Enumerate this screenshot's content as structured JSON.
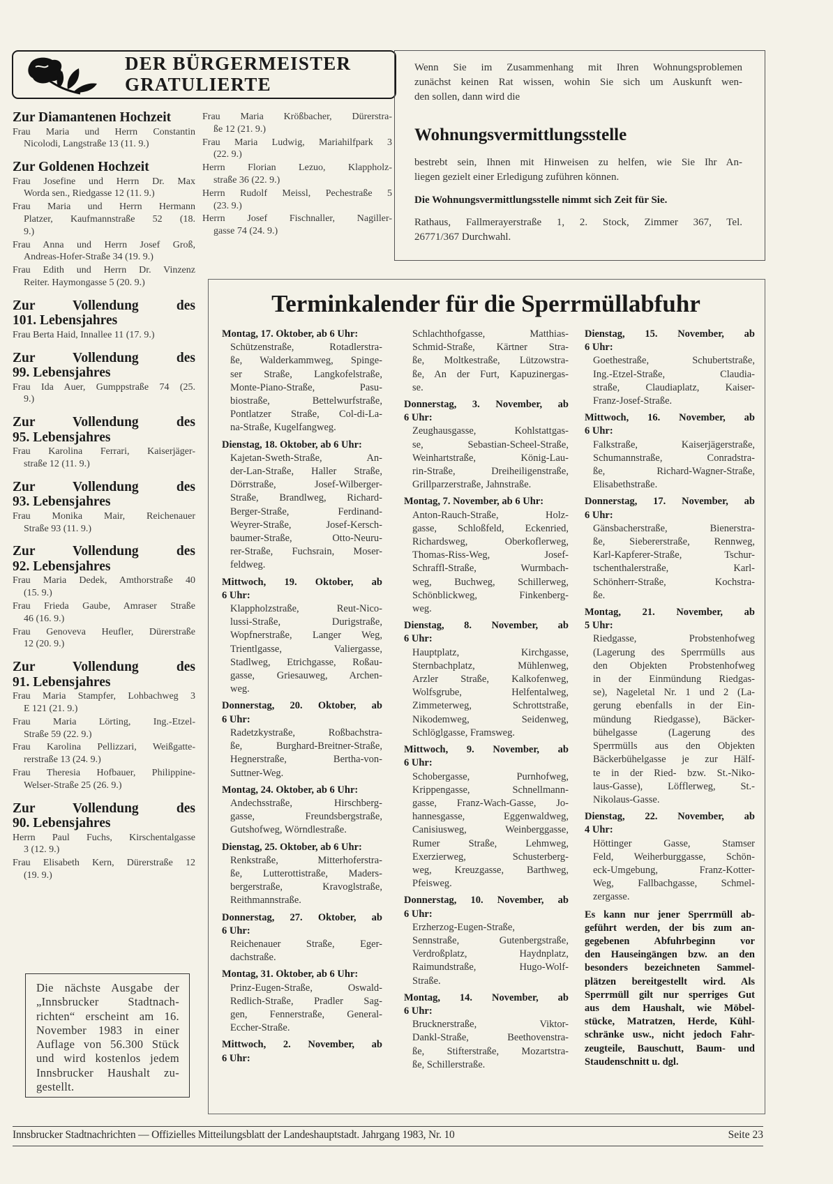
{
  "header": {
    "title_line1": "DER BÜRGERMEISTER",
    "title_line2": "GRATULIERTE",
    "logo_icon": "rose-icon"
  },
  "gratulations": {
    "sections": [
      {
        "heading": [
          "Zur Diamantenen Hochzeit"
        ],
        "entries": [
          [
            "Frau Maria und Herrn Constantin",
            "Nicolodi, Langstraße 13 (11. 9.)"
          ]
        ]
      },
      {
        "heading": [
          "Zur Goldenen Hochzeit"
        ],
        "entries": [
          [
            "Frau Josefine und Herrn Dr. Max",
            "Worda sen., Riedgasse 12 (11. 9.)"
          ],
          [
            "Frau Maria und Herrn Hermann",
            "Platzer, Kaufmannstraße 52 (18.",
            "9.)"
          ],
          [
            "Frau Anna und Herrn Josef Groß,",
            "Andreas-Hofer-Straße 34 (19. 9.)"
          ],
          [
            "Frau Edith und Herrn Dr. Vinzenz",
            "Reiter. Haymongasse 5 (20. 9.)"
          ]
        ]
      },
      {
        "heading": [
          "Zur Vollendung des",
          "101. Lebensjahres"
        ],
        "entries": [
          [
            "Frau Berta Haid, Innallee 11 (17. 9.)"
          ]
        ]
      },
      {
        "heading": [
          "Zur Vollendung des",
          "99. Lebensjahres"
        ],
        "entries": [
          [
            "Frau Ida Auer, Gumppstraße 74 (25.",
            "9.)"
          ]
        ]
      },
      {
        "heading": [
          "Zur Vollendung des",
          "95. Lebensjahres"
        ],
        "entries": [
          [
            "Frau Karolina Ferrari, Kaiserjäger-",
            "straße 12 (11. 9.)"
          ]
        ]
      },
      {
        "heading": [
          "Zur Vollendung des",
          "93. Lebensjahres"
        ],
        "entries": [
          [
            "Frau Monika Mair, Reichenauer",
            "Straße 93 (11. 9.)"
          ]
        ]
      },
      {
        "heading": [
          "Zur Vollendung des",
          "92. Lebensjahres"
        ],
        "entries": [
          [
            "Frau Maria Dedek, Amthorstraße 40",
            "(15. 9.)"
          ],
          [
            "Frau Frieda Gaube, Amraser Straße",
            "46 (16. 9.)"
          ],
          [
            "Frau Genoveva Heufler, Dürerstraße",
            "12 (20. 9.)"
          ]
        ]
      },
      {
        "heading": [
          "Zur Vollendung des",
          "91. Lebensjahres"
        ],
        "entries": [
          [
            "Frau Maria Stampfer, Lohbachweg 3",
            "E 121 (21. 9.)"
          ],
          [
            "Frau Maria Lörting, Ing.-Etzel-",
            "Straße 59 (22. 9.)"
          ],
          [
            "Frau Karolina Pellizzari, Weißgatte-",
            "rerstraße 13 (24. 9.)"
          ],
          [
            "Frau Theresia Hofbauer, Philippine-",
            "Welser-Straße 25 (26. 9.)"
          ]
        ]
      },
      {
        "heading": [
          "Zur Vollendung des",
          "90. Lebensjahres"
        ],
        "entries": [
          [
            "Herrn Paul Fuchs, Kirschentalgasse",
            "3 (12. 9.)"
          ],
          [
            "Frau Elisabeth Kern, Dürerstraße 12",
            "(19. 9.)"
          ]
        ]
      }
    ],
    "continued_entries": [
      [
        "Frau Maria Krößbacher, Dürerstra-",
        "ße 12 (21. 9.)"
      ],
      [
        "Frau Maria Ludwig, Mariahilfpark 3",
        "(22. 9.)"
      ],
      [
        "Herrn Florian Lezuo, Klappholz-",
        "straße 36 (22. 9.)"
      ],
      [
        "Herrn Rudolf Meissl, Pechestraße 5",
        "(23. 9.)"
      ],
      [
        "Herrn Josef Fischnaller, Nagiller-",
        "gasse 74 (24. 9.)"
      ]
    ]
  },
  "housing": {
    "intro": [
      "Wenn Sie im Zusammenhang mit Ihren Wohnungsproblemen",
      "zunächst keinen Rat wissen, wohin Sie sich um Auskunft wen-",
      "den sollen, dann wird die"
    ],
    "title": "Wohnungsvermittlungsstelle",
    "body": [
      "bestrebt sein, Ihnen mit Hinweisen zu helfen, wie Sie Ihr An-",
      "liegen gezielt einer Erledigung zuführen können."
    ],
    "bold_line": "Die Wohnungsvermittlungsstelle nimmt sich Zeit für Sie.",
    "address": [
      "Rathaus, Fallmerayerstraße 1, 2. Stock, Zimmer 367, Tel.",
      "26771/367 Durchwahl."
    ]
  },
  "calendar": {
    "title": "Terminkalender für die Sperrmüllabfuhr",
    "columns": [
      [
        {
          "heading": [
            "Montag, 17. Oktober, ab 6 Uhr:"
          ],
          "streets": [
            "Schützenstraße, Rotadlerstra-",
            "ße, Walderkammweg, Spinge-",
            "ser Straße, Langkofelstraße,",
            "Monte-Piano-Straße, Pasu-",
            "biostraße, Bettelwurfstraße,",
            "Pontlatzer Straße, Col-di-La-",
            "na-Straße, Kugelfangweg."
          ]
        },
        {
          "heading": [
            "Dienstag, 18. Oktober, ab 6 Uhr:"
          ],
          "streets": [
            "Kajetan-Sweth-Straße, An-",
            "der-Lan-Straße, Haller Straße,",
            "Dörrstraße, Josef-Wilberger-",
            "Straße, Brandlweg, Richard-",
            "Berger-Straße, Ferdinand-",
            "Weyrer-Straße, Josef-Kersch-",
            "baumer-Straße, Otto-Neuru-",
            "rer-Straße, Fuchsrain, Moser-",
            "feldweg."
          ]
        },
        {
          "heading": [
            "Mittwoch, 19. Oktober, ab",
            "6 Uhr:"
          ],
          "streets": [
            "Klappholzstraße, Reut-Nico-",
            "lussi-Straße, Durigstraße,",
            "Wopfnerstraße, Langer Weg,",
            "Trientlgasse, Valiergasse,",
            "Stadlweg, Etrichgasse, Roßau-",
            "gasse, Griesauweg, Archen-",
            "weg."
          ]
        },
        {
          "heading": [
            "Donnerstag, 20. Oktober, ab",
            "6 Uhr:"
          ],
          "streets": [
            "Radetzkystraße, Roßbachstra-",
            "ße, Burghard-Breitner-Straße,",
            "Hegnerstraße, Bertha-von-",
            "Suttner-Weg."
          ]
        },
        {
          "heading": [
            "Montag, 24. Oktober, ab 6 Uhr:"
          ],
          "streets": [
            "Andechsstraße, Hirschberg-",
            "gasse, Freundsbergstraße,",
            "Gutshofweg, Wörndlestraße."
          ]
        },
        {
          "heading": [
            "Dienstag, 25. Oktober, ab 6 Uhr:"
          ],
          "streets": [
            "Renkstraße, Mitterhoferstra-",
            "ße, Lutterottistraße, Maders-",
            "bergerstraße, Kravoglstraße,",
            "Reithmannstraße."
          ]
        },
        {
          "heading": [
            "Donnerstag, 27. Oktober, ab",
            "6 Uhr:"
          ],
          "streets": [
            "Reichenauer Straße, Eger-",
            "dachstraße."
          ]
        },
        {
          "heading": [
            "Montag, 31. Oktober, ab 6 Uhr:"
          ],
          "streets": [
            "Prinz-Eugen-Straße, Oswald-",
            "Redlich-Straße, Pradler Sag-",
            "gen, Fennerstraße, General-",
            "Eccher-Straße."
          ]
        },
        {
          "heading": [
            "Mittwoch, 2. November, ab",
            "6 Uhr:"
          ],
          "streets": []
        }
      ],
      [
        {
          "heading": [],
          "streets": [
            "Schlachthofgasse, Matthias-",
            "Schmid-Straße, Kärtner Stra-",
            "ße, Moltkestraße, Lützowstra-",
            "ße, An der Furt, Kapuzinergas-",
            "se."
          ]
        },
        {
          "heading": [
            "Donnerstag, 3. November, ab",
            "6 Uhr:"
          ],
          "streets": [
            "Zeughausgasse, Kohlstattgas-",
            "se, Sebastian-Scheel-Straße,",
            "Weinhartstraße, König-Lau-",
            "rin-Straße, Dreiheiligenstraße,",
            "Grillparzerstraße, Jahnstraße."
          ]
        },
        {
          "heading": [
            "Montag, 7. November, ab 6 Uhr:"
          ],
          "streets": [
            "Anton-Rauch-Straße, Holz-",
            "gasse, Schloßfeld, Eckenried,",
            "Richardsweg, Oberkoflerweg,",
            "Thomas-Riss-Weg, Josef-",
            "Schraffl-Straße, Wurmbach-",
            "weg, Buchweg, Schillerweg,",
            "Schönblickweg, Finkenberg-",
            "weg."
          ]
        },
        {
          "heading": [
            "Dienstag, 8. November, ab",
            "6 Uhr:"
          ],
          "streets": [
            "Hauptplatz, Kirchgasse,",
            "Sternbachplatz, Mühlenweg,",
            "Arzler Straße, Kalkofenweg,",
            "Wolfsgrube, Helfentalweg,",
            "Zimmeterweg, Schrottstraße,",
            "Nikodemweg, Seidenweg,",
            "Schlöglgasse, Framsweg."
          ]
        },
        {
          "heading": [
            "Mittwoch, 9. November, ab",
            "6 Uhr:"
          ],
          "streets": [
            "Schobergasse, Purnhofweg,",
            "Krippengasse, Schnellmann-",
            "gasse, Franz-Wach-Gasse, Jo-",
            "hannesgasse, Eggenwaldweg,",
            "Canisiusweg, Weinberggasse,",
            "Rumer Straße, Lehmweg,",
            "Exerzierweg, Schusterberg-",
            "weg, Kreuzgasse, Barthweg,",
            "Pfeisweg."
          ]
        },
        {
          "heading": [
            "Donnerstag, 10. November, ab",
            "6 Uhr:"
          ],
          "streets": [
            "Erzherzog-Eugen-Straße,",
            "Sennstraße, Gutenbergstraße,",
            "Verdroßplatz, Haydnplatz,",
            "Raimundstraße, Hugo-Wolf-",
            "Straße."
          ]
        },
        {
          "heading": [
            "Montag, 14. November, ab",
            "6 Uhr:"
          ],
          "streets": [
            "Brucknerstraße, Viktor-",
            "Dankl-Straße, Beethovenstra-",
            "ße, Stifterstraße, Mozartstra-",
            "ße, Schillerstraße."
          ]
        }
      ],
      [
        {
          "heading": [
            "Dienstag, 15. November, ab",
            "6 Uhr:"
          ],
          "streets": [
            "Goethestraße, Schubertstraße,",
            "Ing.-Etzel-Straße, Claudia-",
            "straße, Claudiaplatz, Kaiser-",
            "Franz-Josef-Straße."
          ]
        },
        {
          "heading": [
            "Mittwoch, 16. November, ab",
            "6 Uhr:"
          ],
          "streets": [
            "Falkstraße, Kaiserjägerstraße,",
            "Schumannstraße, Conradstra-",
            "ße, Richard-Wagner-Straße,",
            "Elisabethstraße."
          ]
        },
        {
          "heading": [
            "Donnerstag, 17. November, ab",
            "6 Uhr:"
          ],
          "streets": [
            "Gänsbacherstraße, Bienerstra-",
            "ße, Siebererstraße, Rennweg,",
            "Karl-Kapferer-Straße, Tschur-",
            "tschenthalerstraße, Karl-",
            "Schönherr-Straße, Kochstra-",
            "ße."
          ]
        },
        {
          "heading": [
            "Montag, 21. November, ab",
            "5 Uhr:"
          ],
          "streets": [
            "Riedgasse, Probstenhofweg",
            "(Lagerung des Sperrmülls aus",
            "den Objekten Probstenhofweg",
            "in der Einmündung Riedgas-",
            "se), Nageletal Nr. 1 und 2 (La-",
            "gerung ebenfalls in der Ein-",
            "mündung Riedgasse), Bäcker-",
            "bühelgasse (Lagerung des",
            "Sperrmülls aus den Objekten",
            "Bäckerbühelgasse je zur Hälf-",
            "te in der Ried- bzw. St.-Niko-",
            "laus-Gasse), Löfflerweg, St.-",
            "Nikolaus-Gasse."
          ]
        },
        {
          "heading": [
            "Dienstag, 22. November, ab",
            "4 Uhr:"
          ],
          "streets": [
            "Höttinger Gasse, Stamser",
            "Feld, Weiherburggasse, Schön-",
            "eck-Umgebung, Franz-Kotter-",
            "Weg, Fallbachgasse, Schmel-",
            "zergasse."
          ]
        }
      ]
    ],
    "notice": [
      "Es kann nur jener Sperrmüll ab-",
      "geführt werden, der bis zum an-",
      "gegebenen Abfuhrbeginn vor",
      "den Hauseingängen bzw. an den",
      "besonders bezeichneten Sammel-",
      "plätzen bereitgestellt wird. Als",
      "Sperrmüll gilt nur sperriges Gut",
      "aus dem Haushalt, wie Möbel-",
      "stücke, Matratzen, Herde, Kühl-",
      "schränke usw., nicht jedoch Fahr-",
      "zeugteile, Bauschutt, Baum- und",
      "Staudenschnitt u. dgl."
    ]
  },
  "next_issue": [
    "Die nächste Ausgabe der",
    "„Innsbrucker Stadtnach-",
    "richten“ erscheint am 16.",
    "November 1983 in einer",
    "Auflage von 56.300 Stück",
    "und wird kostenlos jedem",
    "Innsbrucker Haushalt zu-",
    "gestellt."
  ],
  "footer": {
    "publication": "Innsbrucker Stadtnachrichten — Offizielles Mitteilungsblatt der Landeshauptstadt. Jahrgang 1983, Nr. 10",
    "page": "Seite 23"
  }
}
